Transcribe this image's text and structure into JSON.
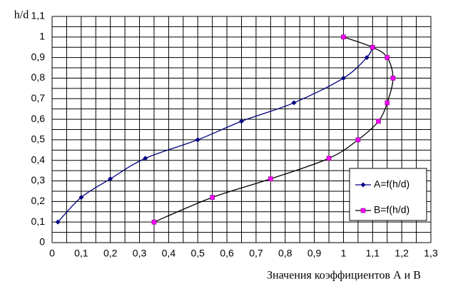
{
  "chart_data": {
    "type": "line",
    "y_label": "h/d",
    "x_label": "Значения коэффициентов А и В",
    "xlim": [
      0,
      1.3
    ],
    "ylim": [
      0,
      1.1
    ],
    "xticks": [
      0,
      {
        "value": 0.1,
        "label": "0,1"
      },
      {
        "value": 0.2,
        "label": "0,2"
      },
      {
        "value": 0.3,
        "label": "0,3"
      },
      {
        "value": 0.4,
        "label": "0,4"
      },
      {
        "value": 0.5,
        "label": "0,5"
      },
      {
        "value": 0.6,
        "label": "0,6"
      },
      {
        "value": 0.7,
        "label": "0,7"
      },
      {
        "value": 0.8,
        "label": "0,8"
      },
      {
        "value": 0.9,
        "label": "0,9"
      },
      1,
      {
        "value": 1.1,
        "label": "1,1"
      },
      {
        "value": 1.2,
        "label": "1,2"
      },
      {
        "value": 1.3,
        "label": "1,3"
      }
    ],
    "yticks": [
      0,
      {
        "value": 0.1,
        "label": "0,1"
      },
      {
        "value": 0.2,
        "label": "0,2"
      },
      {
        "value": 0.3,
        "label": "0,3"
      },
      {
        "value": 0.4,
        "label": "0,4"
      },
      {
        "value": 0.5,
        "label": "0,5"
      },
      {
        "value": 0.6,
        "label": "0,6"
      },
      {
        "value": 0.7,
        "label": "0,7"
      },
      {
        "value": 0.8,
        "label": "0,8"
      },
      {
        "value": 0.9,
        "label": "0,9"
      },
      1,
      {
        "value": 1.1,
        "label": "1,1"
      }
    ],
    "grid": true,
    "legend": "right",
    "series": [
      {
        "name": "A=f(h/d)",
        "color": "#000080",
        "marker": "diamond",
        "marker_color": "#000080",
        "x": [
          0.02,
          0.1,
          0.2,
          0.32,
          0.5,
          0.65,
          0.83,
          1.0,
          1.08,
          1.1
        ],
        "values": [
          0.1,
          0.22,
          0.31,
          0.41,
          0.5,
          0.59,
          0.68,
          0.8,
          0.9,
          0.95
        ]
      },
      {
        "name": "B=f(h/d)",
        "color": "#000000",
        "marker": "square",
        "marker_color": "#ff00ff",
        "x": [
          0.35,
          0.55,
          0.75,
          0.95,
          1.05,
          1.12,
          1.15,
          1.17,
          1.15,
          1.1,
          1.0
        ],
        "values": [
          0.1,
          0.22,
          0.31,
          0.41,
          0.5,
          0.59,
          0.68,
          0.8,
          0.9,
          0.95,
          1.0
        ]
      }
    ]
  }
}
